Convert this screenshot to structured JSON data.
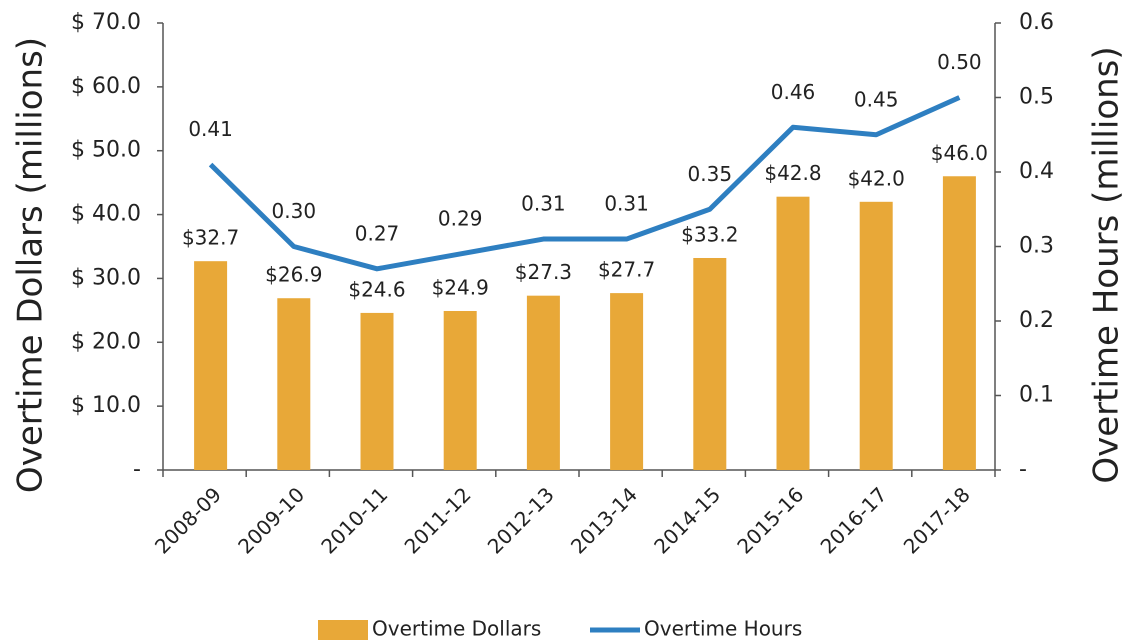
{
  "chart_data": {
    "type": "bar+line",
    "categories": [
      "2008-09",
      "2009-10",
      "2010-11",
      "2011-12",
      "2012-13",
      "2013-14",
      "2014-15",
      "2015-16",
      "2016-17",
      "2017-18"
    ],
    "series": [
      {
        "name": "Overtime Dollars",
        "type": "bar",
        "color": "#e8a838",
        "values": [
          32.7,
          26.9,
          24.6,
          24.9,
          27.3,
          27.7,
          33.2,
          42.8,
          42.0,
          46.0
        ],
        "value_labels": [
          "$32.7",
          "$26.9",
          "$24.6",
          "$24.9",
          "$27.3",
          "$27.7",
          "$33.2",
          "$42.8",
          "$42.0",
          "$46.0"
        ]
      },
      {
        "name": "Overtime Hours",
        "type": "line",
        "axis": "y2",
        "color": "#2e7fc1",
        "values": [
          0.41,
          0.3,
          0.27,
          0.29,
          0.31,
          0.31,
          0.35,
          0.46,
          0.45,
          0.5
        ],
        "value_labels": [
          "0.41",
          "0.30",
          "0.27",
          "0.29",
          "0.31",
          "0.31",
          "0.35",
          "0.46",
          "0.45",
          "0.50"
        ]
      }
    ],
    "ylabel": "Overtime Dollars (millions)",
    "y2label": "Overtime Hours (millions)",
    "ylim": [
      0,
      70
    ],
    "yticks": [
      {
        "value": 0,
        "label": "-"
      },
      {
        "value": 10,
        "label": "$ 10.0"
      },
      {
        "value": 20,
        "label": "$ 20.0"
      },
      {
        "value": 30,
        "label": "$ 30.0"
      },
      {
        "value": 40,
        "label": "$ 40.0"
      },
      {
        "value": 50,
        "label": "$ 50.0"
      },
      {
        "value": 60,
        "label": "$ 60.0"
      },
      {
        "value": 70,
        "label": "$ 70.0"
      }
    ],
    "y2lim": [
      0,
      0.6
    ],
    "y2ticks": [
      {
        "value": 0,
        "label": "-"
      },
      0.1,
      0.2,
      0.3,
      0.4,
      0.5,
      0.6
    ],
    "legend": "bottom"
  }
}
